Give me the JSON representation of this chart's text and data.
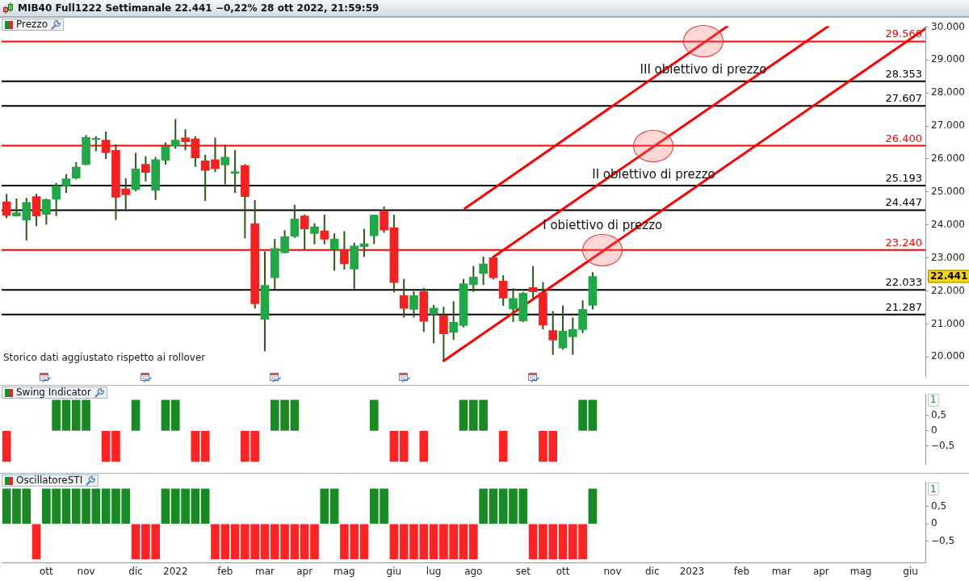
{
  "chart_data": [
    {
      "type": "candlestick",
      "title": "MIB40 Full1222 Settimanale 22.441 −0,22% 28 ott 2022, 21:59:59",
      "subtitle": "Prezzo",
      "x": [
        "2021-09-06",
        "2021-09-13",
        "2021-09-20",
        "2021-09-27",
        "2021-10-04",
        "2021-10-11",
        "2021-10-18",
        "2021-10-25",
        "2021-11-01",
        "2021-11-08",
        "2021-11-15",
        "2021-11-22",
        "2021-11-29",
        "2021-12-06",
        "2021-12-13",
        "2021-12-20",
        "2021-12-27",
        "2022-01-03",
        "2022-01-10",
        "2022-01-17",
        "2022-01-24",
        "2022-01-31",
        "2022-02-07",
        "2022-02-14",
        "2022-02-21",
        "2022-02-28",
        "2022-03-07",
        "2022-03-14",
        "2022-03-21",
        "2022-03-28",
        "2022-04-04",
        "2022-04-11",
        "2022-04-18",
        "2022-04-25",
        "2022-05-02",
        "2022-05-09",
        "2022-05-16",
        "2022-05-23",
        "2022-05-30",
        "2022-06-06",
        "2022-06-13",
        "2022-06-20",
        "2022-06-27",
        "2022-07-04",
        "2022-07-11",
        "2022-07-18",
        "2022-07-25",
        "2022-08-01",
        "2022-08-08",
        "2022-08-15",
        "2022-08-22",
        "2022-08-29",
        "2022-09-05",
        "2022-09-12",
        "2022-09-19",
        "2022-09-26",
        "2022-10-03",
        "2022-10-10",
        "2022-10-17",
        "2022-10-24"
      ],
      "ohlc": [
        [
          24700,
          24940,
          24200,
          24290
        ],
        [
          24270,
          24800,
          24250,
          24370
        ],
        [
          24150,
          24820,
          23530,
          24680
        ],
        [
          24860,
          24940,
          23960,
          24270
        ],
        [
          24320,
          24800,
          24010,
          24770
        ],
        [
          24780,
          25270,
          24270,
          25180
        ],
        [
          25180,
          25540,
          24970,
          25400
        ],
        [
          25420,
          25900,
          25380,
          25750
        ],
        [
          25830,
          26720,
          25810,
          26650
        ],
        [
          26590,
          26690,
          26230,
          26630
        ],
        [
          26570,
          26830,
          26000,
          26190
        ],
        [
          26260,
          26440,
          24150,
          24840
        ],
        [
          25090,
          25420,
          24470,
          24910
        ],
        [
          25070,
          26180,
          25020,
          25700
        ],
        [
          25840,
          26080,
          25320,
          25590
        ],
        [
          25050,
          26060,
          24760,
          25980
        ],
        [
          25960,
          26500,
          25830,
          26380
        ],
        [
          26400,
          27210,
          26310,
          26570
        ],
        [
          26640,
          26900,
          26260,
          26520
        ],
        [
          26610,
          26690,
          25760,
          26030
        ],
        [
          25940,
          26130,
          24730,
          25650
        ],
        [
          25980,
          26650,
          25600,
          25710
        ],
        [
          25820,
          26430,
          25230,
          26050
        ],
        [
          25560,
          26270,
          24970,
          25610
        ],
        [
          25800,
          25840,
          23590,
          24860
        ],
        [
          24040,
          24750,
          21460,
          21610
        ],
        [
          21140,
          23200,
          20170,
          22170
        ],
        [
          22400,
          23580,
          22040,
          23290
        ],
        [
          23160,
          23840,
          23140,
          23640
        ],
        [
          23650,
          24610,
          23610,
          24180
        ],
        [
          24270,
          24320,
          23260,
          23880
        ],
        [
          23740,
          24050,
          23410,
          23940
        ],
        [
          23820,
          24310,
          23410,
          23570
        ],
        [
          23260,
          23740,
          22610,
          23570
        ],
        [
          23260,
          23810,
          22650,
          22820
        ],
        [
          22660,
          23460,
          22070,
          23360
        ],
        [
          23340,
          23880,
          23030,
          23430
        ],
        [
          23670,
          24310,
          23420,
          24300
        ],
        [
          24430,
          24560,
          23760,
          23840
        ],
        [
          23920,
          24310,
          21950,
          22250
        ],
        [
          21860,
          22360,
          21190,
          21470
        ],
        [
          21440,
          21990,
          21190,
          21860
        ],
        [
          21980,
          22090,
          20760,
          21080
        ],
        [
          21290,
          21580,
          20410,
          21480
        ],
        [
          21250,
          21520,
          19880,
          20700
        ],
        [
          20740,
          21690,
          20520,
          21050
        ],
        [
          20950,
          22360,
          20900,
          22220
        ],
        [
          22190,
          22750,
          21970,
          22420
        ],
        [
          22530,
          23040,
          22180,
          22820
        ],
        [
          23010,
          23030,
          22350,
          22400
        ],
        [
          22300,
          22480,
          21550,
          21780
        ],
        [
          21450,
          22080,
          21060,
          21770
        ],
        [
          21090,
          21970,
          21050,
          21930
        ],
        [
          22100,
          22750,
          21780,
          21970
        ],
        [
          21940,
          22270,
          20830,
          20960
        ],
        [
          20800,
          21390,
          20060,
          20510
        ],
        [
          20270,
          21560,
          20220,
          20780
        ],
        [
          20610,
          21190,
          20060,
          20830
        ],
        [
          20830,
          21710,
          20720,
          21440
        ],
        [
          21560,
          22570,
          21440,
          22441
        ]
      ],
      "colors": [
        "#f42121",
        "#1fa845",
        "#1fa845",
        "#f42121",
        "#1fa845",
        "#1fa845",
        "#1fa845",
        "#1fa845",
        "#1fa845",
        "#1fa845",
        "#f42121",
        "#f42121",
        "#f42121",
        "#1fa845",
        "#f42121",
        "#1fa845",
        "#1fa845",
        "#1fa845",
        "#f42121",
        "#f42121",
        "#f42121",
        "#f42121",
        "#1fa845",
        "#1fa845",
        "#f42121",
        "#f42121",
        "#1fa845",
        "#1fa845",
        "#1fa845",
        "#1fa845",
        "#f42121",
        "#1fa845",
        "#f42121",
        "#1fa845",
        "#f42121",
        "#1fa845",
        "#1fa845",
        "#1fa845",
        "#f42121",
        "#f42121",
        "#f42121",
        "#1fa845",
        "#f42121",
        "#1fa845",
        "#f42121",
        "#1fa845",
        "#1fa845",
        "#1fa845",
        "#1fa845",
        "#f42121",
        "#f42121",
        "#1fa845",
        "#1fa845",
        "#f42121",
        "#f42121",
        "#f42121",
        "#1fa845",
        "#1fa845",
        "#1fa845",
        "#1fa845"
      ],
      "series": [
        {
          "type": "line",
          "color": "#ff0000",
          "x": [
            "2022-07-11",
            "2023-06-15T12:00"
          ],
          "values": [
            19880,
            29950
          ]
        },
        {
          "type": "line",
          "color": "#ff0000",
          "x": [
            "2022-08-15",
            "2023-04-08"
          ],
          "values": [
            23030,
            30020
          ]
        },
        {
          "type": "line",
          "color": "#ff0000",
          "x": [
            "2022-07-26",
            "2023-01-27"
          ],
          "values": [
            24500,
            30020
          ]
        }
      ],
      "xlim": [
        "2021-09-02T12:00",
        "2023-06-15T12:00"
      ],
      "ylim": [
        19400,
        30030
      ],
      "yticks": [
        {
          "value": 20000,
          "label": "20.000"
        },
        {
          "value": 21000,
          "label": "21.000"
        },
        {
          "value": 22000,
          "label": "22.000"
        },
        {
          "value": 23000,
          "label": "23.000"
        },
        {
          "value": 24000,
          "label": "24.000"
        },
        {
          "value": 25000,
          "label": "25.000"
        },
        {
          "value": 26000,
          "label": "26.000"
        },
        {
          "value": 27000,
          "label": "27.000"
        },
        {
          "value": 28000,
          "label": "28.000"
        },
        {
          "value": 29000,
          "label": "29.000"
        },
        {
          "value": 30000,
          "label": "30.000"
        }
      ],
      "ref_lines": [
        {
          "axis": "y",
          "value": 29560,
          "label": "29.560",
          "color": "#ff0000"
        },
        {
          "axis": "y",
          "value": 28353,
          "label": "28.353",
          "color": "#000000"
        },
        {
          "axis": "y",
          "value": 27607,
          "label": "27.607",
          "color": "#000000"
        },
        {
          "axis": "y",
          "value": 26400,
          "label": "26.400",
          "color": "#ff0000"
        },
        {
          "axis": "y",
          "value": 25193,
          "label": "25.193",
          "color": "#000000"
        },
        {
          "axis": "y",
          "value": 24447,
          "label": "24.447",
          "color": "#000000"
        },
        {
          "axis": "y",
          "value": 23240,
          "label": "23.240",
          "color": "#ff0000"
        },
        {
          "axis": "y",
          "value": 22033,
          "label": "22.033",
          "color": "#000000"
        },
        {
          "axis": "y",
          "value": 21287,
          "label": "21.287",
          "color": "#000000"
        }
      ],
      "annotations": [
        {
          "text": "III obiettivo di prezzo",
          "x": "2023-01-10",
          "y": 29560
        },
        {
          "text": "II obiettivo di prezzo",
          "x": "2022-12-06",
          "y": 26400
        },
        {
          "text": "I obiettivo di prezzo",
          "x": "2022-10-31",
          "y": 23240
        },
        "22.441",
        "Storico dati aggiustato rispetto ai rollover"
      ],
      "tick_labels": "y"
    },
    {
      "type": "bar",
      "title": "Swing Indicator",
      "x": [
        "2021-09-06",
        "2021-09-13",
        "2021-09-20",
        "2021-09-27",
        "2021-10-04",
        "2021-10-11",
        "2021-10-18",
        "2021-10-25",
        "2021-11-01",
        "2021-11-08",
        "2021-11-15",
        "2021-11-22",
        "2021-11-29",
        "2021-12-06",
        "2021-12-13",
        "2021-12-20",
        "2021-12-27",
        "2022-01-03",
        "2022-01-10",
        "2022-01-17",
        "2022-01-24",
        "2022-01-31",
        "2022-02-07",
        "2022-02-14",
        "2022-02-21",
        "2022-02-28",
        "2022-03-07",
        "2022-03-14",
        "2022-03-21",
        "2022-03-28",
        "2022-04-04",
        "2022-04-11",
        "2022-04-18",
        "2022-04-25",
        "2022-05-02",
        "2022-05-09",
        "2022-05-16",
        "2022-05-23",
        "2022-05-30",
        "2022-06-06",
        "2022-06-13",
        "2022-06-20",
        "2022-06-27",
        "2022-07-04",
        "2022-07-11",
        "2022-07-18",
        "2022-07-25",
        "2022-08-01",
        "2022-08-08",
        "2022-08-15",
        "2022-08-22",
        "2022-08-29",
        "2022-09-05",
        "2022-09-12",
        "2022-09-19",
        "2022-09-26",
        "2022-10-03",
        "2022-10-10",
        "2022-10-17",
        "2022-10-24"
      ],
      "values": [
        -1,
        null,
        null,
        null,
        null,
        1,
        1,
        1,
        1,
        null,
        -1,
        -1,
        null,
        1,
        null,
        null,
        1,
        1,
        null,
        -1,
        -1,
        null,
        null,
        null,
        -1,
        -1,
        null,
        1,
        1,
        1,
        null,
        null,
        null,
        null,
        null,
        null,
        null,
        1,
        null,
        -1,
        -1,
        null,
        -1,
        null,
        null,
        null,
        1,
        1,
        1,
        null,
        -1,
        null,
        null,
        null,
        -1,
        -1,
        null,
        null,
        1,
        1
      ],
      "colors": [
        "#ff2323",
        null,
        null,
        null,
        null,
        "#178a23",
        "#178a23",
        "#178a23",
        "#178a23",
        null,
        "#ff2323",
        "#ff2323",
        null,
        "#178a23",
        null,
        null,
        "#178a23",
        "#178a23",
        null,
        "#ff2323",
        "#ff2323",
        null,
        null,
        null,
        "#ff2323",
        "#ff2323",
        null,
        "#178a23",
        "#178a23",
        "#178a23",
        null,
        null,
        null,
        null,
        null,
        null,
        null,
        "#178a23",
        null,
        "#ff2323",
        "#ff2323",
        null,
        "#ff2323",
        null,
        null,
        null,
        "#178a23",
        "#178a23",
        "#178a23",
        null,
        "#ff2323",
        null,
        null,
        null,
        "#ff2323",
        "#ff2323",
        null,
        null,
        "#178a23",
        "#178a23"
      ],
      "xlim": [
        "2021-09-02T12:00",
        "2023-06-15T12:00"
      ],
      "ylim": [
        -1.1,
        1.2
      ],
      "yticks": [
        {
          "value": 0.5,
          "label": "0,5"
        },
        0,
        {
          "value": -0.5,
          "label": "−0,5"
        }
      ],
      "annotations": [
        "1"
      ],
      "tick_labels": "y"
    },
    {
      "type": "bar",
      "title": "OscillatoreSTI",
      "x": [
        "2021-09-06",
        "2021-09-13",
        "2021-09-20",
        "2021-09-27",
        "2021-10-04",
        "2021-10-11",
        "2021-10-18",
        "2021-10-25",
        "2021-11-01",
        "2021-11-08",
        "2021-11-15",
        "2021-11-22",
        "2021-11-29",
        "2021-12-06",
        "2021-12-13",
        "2021-12-20",
        "2021-12-27",
        "2022-01-03",
        "2022-01-10",
        "2022-01-17",
        "2022-01-24",
        "2022-01-31",
        "2022-02-07",
        "2022-02-14",
        "2022-02-21",
        "2022-02-28",
        "2022-03-07",
        "2022-03-14",
        "2022-03-21",
        "2022-03-28",
        "2022-04-04",
        "2022-04-11",
        "2022-04-18",
        "2022-04-25",
        "2022-05-02",
        "2022-05-09",
        "2022-05-16",
        "2022-05-23",
        "2022-05-30",
        "2022-06-06",
        "2022-06-13",
        "2022-06-20",
        "2022-06-27",
        "2022-07-04",
        "2022-07-11",
        "2022-07-18",
        "2022-07-25",
        "2022-08-01",
        "2022-08-08",
        "2022-08-15",
        "2022-08-22",
        "2022-08-29",
        "2022-09-05",
        "2022-09-12",
        "2022-09-19",
        "2022-09-26",
        "2022-10-03",
        "2022-10-10",
        "2022-10-17",
        "2022-10-24"
      ],
      "values": [
        1,
        1,
        1,
        -1,
        1,
        1,
        1,
        1,
        1,
        1,
        1,
        1,
        1,
        -1,
        -1,
        -1,
        1,
        1,
        1,
        1,
        1,
        -1,
        -1,
        -1,
        -1,
        -1,
        -1,
        -1,
        -1,
        -1,
        -1,
        -1,
        1,
        1,
        -1,
        -1,
        -1,
        1,
        1,
        -1,
        -1,
        -1,
        -1,
        -1,
        -1,
        -1,
        -1,
        -1,
        1,
        1,
        1,
        1,
        1,
        -1,
        -1,
        -1,
        -1,
        -1,
        -1,
        1
      ],
      "colors": [
        "#178a23",
        "#178a23",
        "#178a23",
        "#ff2323",
        "#178a23",
        "#178a23",
        "#178a23",
        "#178a23",
        "#178a23",
        "#178a23",
        "#178a23",
        "#178a23",
        "#178a23",
        "#ff2323",
        "#ff2323",
        "#ff2323",
        "#178a23",
        "#178a23",
        "#178a23",
        "#178a23",
        "#178a23",
        "#ff2323",
        "#ff2323",
        "#ff2323",
        "#ff2323",
        "#ff2323",
        "#ff2323",
        "#ff2323",
        "#ff2323",
        "#ff2323",
        "#ff2323",
        "#ff2323",
        "#178a23",
        "#178a23",
        "#ff2323",
        "#ff2323",
        "#ff2323",
        "#178a23",
        "#178a23",
        "#ff2323",
        "#ff2323",
        "#ff2323",
        "#ff2323",
        "#ff2323",
        "#ff2323",
        "#ff2323",
        "#ff2323",
        "#ff2323",
        "#178a23",
        "#178a23",
        "#178a23",
        "#178a23",
        "#178a23",
        "#ff2323",
        "#ff2323",
        "#ff2323",
        "#ff2323",
        "#ff2323",
        "#ff2323",
        "#178a23"
      ],
      "xlim": [
        "2021-09-02T12:00",
        "2023-06-15T12:00"
      ],
      "xticks": [
        {
          "value": "2021-10-04",
          "label": "ott"
        },
        {
          "value": "2021-11-01",
          "label": "nov"
        },
        {
          "value": "2021-12-06",
          "label": "dic"
        },
        {
          "value": "2022-01-03",
          "label": "2022"
        },
        {
          "value": "2022-02-07",
          "label": "feb"
        },
        {
          "value": "2022-03-07",
          "label": "mar"
        },
        {
          "value": "2022-04-04",
          "label": "apr"
        },
        {
          "value": "2022-05-02",
          "label": "mag"
        },
        {
          "value": "2022-06-06",
          "label": "giu"
        },
        {
          "value": "2022-07-04",
          "label": "lug"
        },
        {
          "value": "2022-08-01",
          "label": "ago"
        },
        {
          "value": "2022-09-05",
          "label": "set"
        },
        {
          "value": "2022-10-03",
          "label": "ott"
        },
        {
          "value": "2022-11-07",
          "label": "nov"
        },
        {
          "value": "2022-12-05",
          "label": "dic"
        },
        {
          "value": "2023-01-02",
          "label": "2023"
        },
        {
          "value": "2023-02-06",
          "label": "feb"
        },
        {
          "value": "2023-03-06",
          "label": "mar"
        },
        {
          "value": "2023-04-03",
          "label": "apr"
        },
        {
          "value": "2023-05-01",
          "label": "mag"
        },
        {
          "value": "2023-06-05",
          "label": "giu"
        }
      ],
      "ylim": [
        -1.1,
        1.2
      ],
      "yticks": [
        {
          "value": 0.5,
          "label": "0,5"
        },
        0,
        {
          "value": -0.5,
          "label": "−0,5"
        }
      ],
      "annotations": [
        "1"
      ]
    }
  ]
}
